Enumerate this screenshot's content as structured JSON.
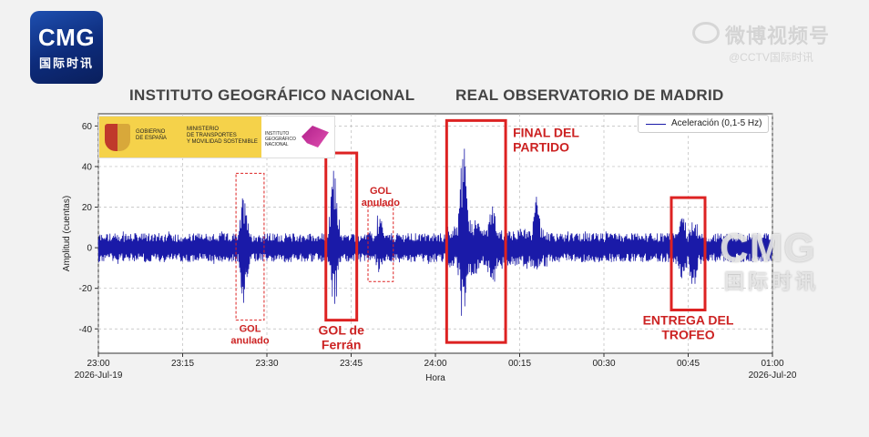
{
  "logo": {
    "cmg": "CMG",
    "subtitle": "国际时讯"
  },
  "watermark": {
    "weibo": "微博视频号",
    "weibo_sub": "@CCTV国际时讯",
    "cmg": "CMG",
    "cn": "国际时讯"
  },
  "header": {
    "institute": "INSTITUTO GEOGRÁFICO NACIONAL",
    "observatory": "REAL OBSERVATORIO DE MADRID"
  },
  "logos": {
    "gobierno": "GOBIERNO\nDE ESPAÑA",
    "ministerio": "MINISTERIO\nDE TRANSPORTES\nY MOVILIDAD SOSTENIBLE",
    "ign": "INSTITUTO\nGEOGRÁFICO\nNACIONAL"
  },
  "chart_data": {
    "type": "line",
    "xlabel": "Hora",
    "ylabel": "Amplitud (cuentas)",
    "legend": [
      "Aceleración (0,1-5 Hz)"
    ],
    "legend_position": "top-right",
    "grid": true,
    "ylim": [
      -52,
      66
    ],
    "xlim": [
      "2026-07-19 23:00",
      "2026-07-20 01:00"
    ],
    "x_ticks": [
      "23:00",
      "23:15",
      "23:30",
      "23:45",
      "24:00",
      "00:15",
      "00:30",
      "00:45",
      "01:00"
    ],
    "x_tick_dates": {
      "start": "2026-Jul-19",
      "end": "2026-Jul-20"
    },
    "y_ticks": [
      60,
      40,
      20,
      0,
      -20,
      -40
    ],
    "series": [
      {
        "name": "Aceleración (0,1-5 Hz)",
        "color": "#1a1aa8",
        "baseline_amplitude": 8,
        "bursts": [
          {
            "time": "23:26",
            "peak": 34,
            "trough": -33
          },
          {
            "time": "23:42",
            "peak": 44,
            "trough": -33
          },
          {
            "time": "23:50",
            "peak": 18,
            "trough": -14
          },
          {
            "time": "24:05",
            "peak": 60,
            "trough": -44
          },
          {
            "time": "24:10",
            "peak": 28,
            "trough": -24
          },
          {
            "time": "00:18",
            "peak": 28,
            "trough": -14
          },
          {
            "time": "00:44",
            "peak": 22,
            "trough": -22
          },
          {
            "time": "00:46",
            "peak": 20,
            "trough": -28
          }
        ]
      }
    ],
    "annotations": [
      {
        "label": "GOL\nanulado",
        "style": "dashed",
        "time_start": "23:24.5",
        "time_end": "23:29.5",
        "label_position": "below"
      },
      {
        "label": "GOL de\nFerrán",
        "style": "solid",
        "time_start": "23:40.5",
        "time_end": "23:46",
        "label_position": "below"
      },
      {
        "label": "GOL\nanulado",
        "style": "dashed",
        "time_start": "23:48",
        "time_end": "23:52.5",
        "label_position": "above"
      },
      {
        "label": "FINAL DEL\nPARTIDO",
        "style": "solid",
        "time_start": "24:02",
        "time_end": "24:12.5",
        "label_position": "right"
      },
      {
        "label": "ENTREGA DEL\nTROFEO",
        "style": "solid",
        "time_start": "00:42",
        "time_end": "00:48",
        "label_position": "below"
      }
    ]
  }
}
